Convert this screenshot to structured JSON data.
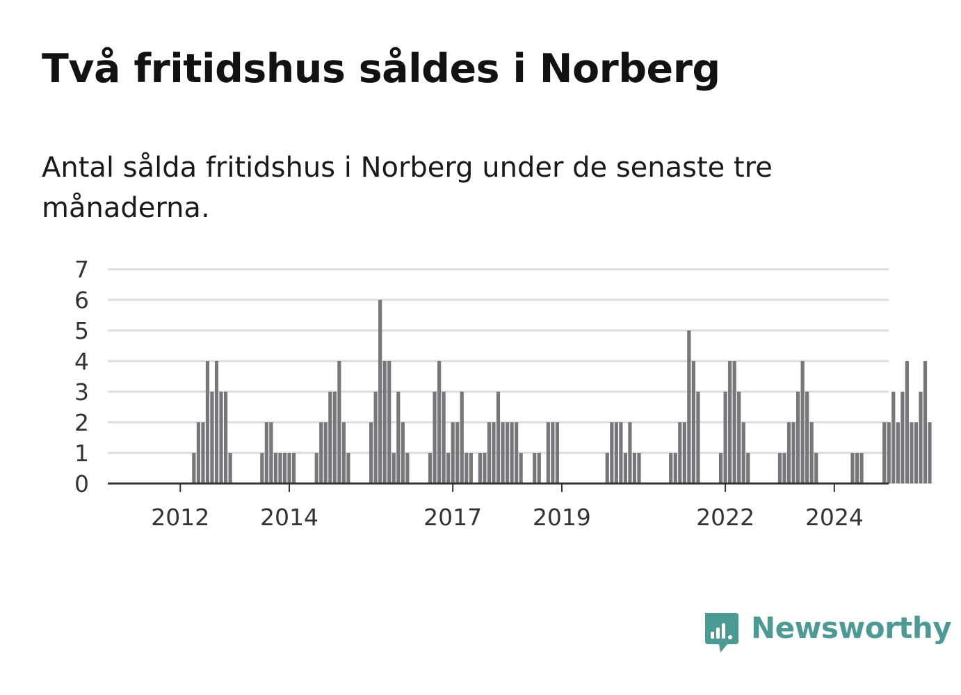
{
  "title": "Två fritidshus såldes i Norberg",
  "subtitle": "Antal sålda fritidshus i Norberg under de senaste tre månaderna.",
  "logo_text": "Newsworthy",
  "colors": {
    "bar": "#77767b",
    "highlight": "#00998a",
    "grid": "#dcdcdc",
    "axis": "#333333",
    "brand": "#4b9a93"
  },
  "chart_data": {
    "type": "bar",
    "title": "Två fritidshus såldes i Norberg",
    "subtitle": "Antal sålda fritidshus i Norberg under de senaste tre månaderna.",
    "x_unit": "month",
    "x_start": "2011-05",
    "x_ticks": [
      {
        "label": "2012",
        "date": "2012-01"
      },
      {
        "label": "2014",
        "date": "2014-01"
      },
      {
        "label": "2017",
        "date": "2017-01"
      },
      {
        "label": "2019",
        "date": "2019-01"
      },
      {
        "label": "2022",
        "date": "2022-01"
      },
      {
        "label": "2024",
        "date": "2024-01"
      }
    ],
    "ylim": [
      0,
      7
    ],
    "y_ticks": [
      0,
      1,
      2,
      3,
      4,
      5,
      6,
      7
    ],
    "grid": true,
    "values": [
      0,
      0,
      0,
      0,
      0,
      0,
      0,
      0,
      0,
      0,
      0,
      1,
      2,
      2,
      4,
      3,
      4,
      3,
      3,
      1,
      0,
      0,
      0,
      0,
      0,
      0,
      1,
      2,
      2,
      1,
      1,
      1,
      1,
      1,
      0,
      0,
      0,
      0,
      1,
      2,
      2,
      3,
      3,
      4,
      2,
      1,
      0,
      0,
      0,
      0,
      2,
      3,
      6,
      4,
      4,
      1,
      3,
      2,
      1,
      0,
      0,
      0,
      0,
      1,
      3,
      4,
      3,
      1,
      2,
      2,
      3,
      1,
      1,
      0,
      1,
      1,
      2,
      2,
      3,
      2,
      2,
      2,
      2,
      1,
      0,
      0,
      1,
      1,
      0,
      2,
      2,
      2,
      0,
      0,
      0,
      0,
      0,
      0,
      0,
      0,
      0,
      0,
      1,
      2,
      2,
      2,
      1,
      2,
      1,
      1,
      0,
      0,
      0,
      0,
      0,
      0,
      1,
      1,
      2,
      2,
      5,
      4,
      3,
      0,
      0,
      0,
      0,
      1,
      3,
      4,
      4,
      3,
      2,
      1,
      0,
      0,
      0,
      0,
      0,
      0,
      1,
      1,
      2,
      2,
      3,
      4,
      3,
      2,
      1,
      0,
      0,
      0,
      0,
      0,
      0,
      0,
      1,
      1,
      1,
      0,
      0,
      0,
      0,
      2,
      2,
      3,
      2,
      3,
      4,
      2,
      2,
      3,
      4,
      2
    ],
    "highlight_index": 175,
    "highlight_label": "2"
  }
}
